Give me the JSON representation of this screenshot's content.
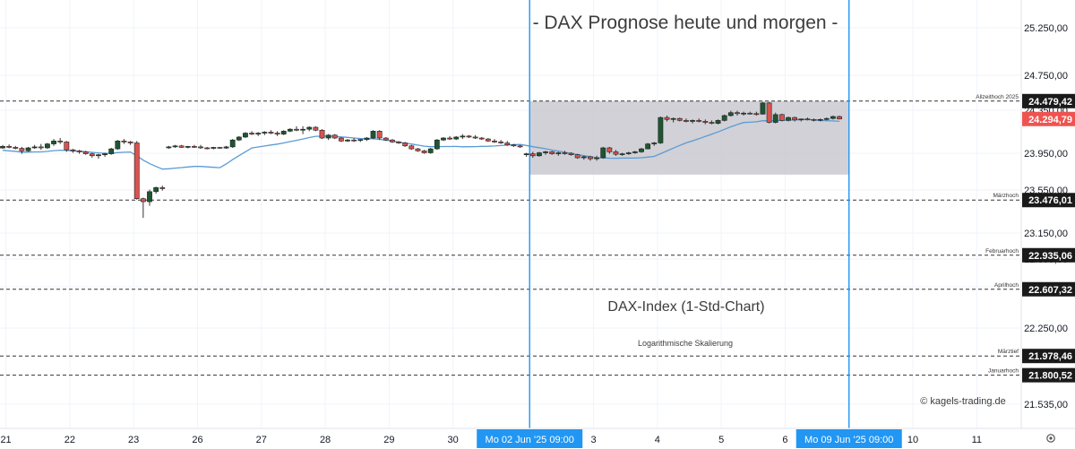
{
  "chart_data": {
    "type": "candlestick",
    "title": "- DAX Prognose heute und morgen -",
    "subtitle": "DAX-Index (1-Std-Chart)",
    "scale_note": "Logarithmische Skalierung",
    "watermark": "© kagels-trading.de",
    "y_axis_ticks": [
      "25.250,00",
      "24.750,00",
      "24.350,00",
      "23.950,00",
      "23.550,00",
      "23.150,00",
      "22.850,00",
      "22.550,00",
      "22.250,00",
      "21.535,00"
    ],
    "x_axis_ticks": [
      {
        "label": "21",
        "x": 0.5
      },
      {
        "label": "22",
        "x": 10.5
      },
      {
        "label": "23",
        "x": 20.5
      },
      {
        "label": "26",
        "x": 30.5
      },
      {
        "label": "27",
        "x": 40.5
      },
      {
        "label": "28",
        "x": 50.5
      },
      {
        "label": "29",
        "x": 60.5
      },
      {
        "label": "30",
        "x": 70.5
      },
      {
        "label": "3",
        "x": 92.5
      },
      {
        "label": "4",
        "x": 102.5
      },
      {
        "label": "5",
        "x": 112.5
      },
      {
        "label": "6",
        "x": 122.5
      },
      {
        "label": "10",
        "x": 142.5
      },
      {
        "label": "11",
        "x": 152.5
      }
    ],
    "date_markers": [
      {
        "label": "Mo 02 Jun '25   09:00",
        "x": 82.5
      },
      {
        "label": "Mo 09 Jun '25   09:00",
        "x": 132.5
      }
    ],
    "price_levels": [
      {
        "name": "Allzeithoch 2025",
        "value": 24479.42,
        "label": "24.479,42"
      },
      {
        "name": "Märzhoch",
        "value": 23476.01,
        "label": "23.476,01"
      },
      {
        "name": "Februarhoch",
        "value": 22935.06,
        "label": "22.935,06"
      },
      {
        "name": "Aprilhoch",
        "value": 22607.32,
        "label": "22.607,32"
      },
      {
        "name": "Märztief",
        "value": 21978.46,
        "label": "21.978,46"
      },
      {
        "name": "Januarhoch",
        "value": 21800.52,
        "label": "21.800,52"
      }
    ],
    "current_price": {
      "value": 24294.79,
      "label": "24.294,79"
    },
    "forecast_zone": {
      "from_x": 82.5,
      "to_x": 132.5,
      "upper": 24479,
      "lower": 23730
    },
    "colors": {
      "bull": "#1e5631",
      "bear": "#d9534f",
      "ma": "#5b9bd5",
      "marker": "#2196f3",
      "zone": "#c9c9d0"
    },
    "candles": [
      [
        23999,
        24030,
        23990,
        24015
      ],
      [
        24015,
        24035,
        23995,
        24005
      ],
      [
        24005,
        24020,
        23985,
        23995
      ],
      [
        23995,
        24010,
        23940,
        23970
      ],
      [
        23970,
        24010,
        23960,
        24000
      ],
      [
        24000,
        24030,
        23990,
        24010
      ],
      [
        24010,
        24040,
        23980,
        24000
      ],
      [
        24000,
        24050,
        23990,
        24040
      ],
      [
        24040,
        24090,
        24020,
        24070
      ],
      [
        24070,
        24100,
        24040,
        24060
      ],
      [
        24060,
        24070,
        23960,
        23980
      ],
      [
        23980,
        23990,
        23950,
        23970
      ],
      [
        23970,
        23980,
        23940,
        23960
      ],
      [
        23960,
        23970,
        23930,
        23940
      ],
      [
        23940,
        23950,
        23900,
        23920
      ],
      [
        23920,
        23940,
        23890,
        23930
      ],
      [
        23930,
        23950,
        23910,
        23940
      ],
      [
        23940,
        24000,
        23930,
        23990
      ],
      [
        23990,
        24080,
        23980,
        24070
      ],
      [
        24070,
        24090,
        24040,
        24060
      ],
      [
        24060,
        24070,
        24030,
        24050
      ],
      [
        24050,
        24070,
        23480,
        23490
      ],
      [
        23490,
        23500,
        23300,
        23460
      ],
      [
        23460,
        23580,
        23420,
        23560
      ],
      [
        23560,
        23610,
        23540,
        23600
      ],
      [
        23600,
        23620,
        23570,
        23590
      ],
      [
        24000,
        24020,
        23990,
        24010
      ],
      [
        24010,
        24030,
        24000,
        24020
      ],
      [
        24020,
        24030,
        24000,
        24005
      ],
      [
        24005,
        24020,
        23995,
        24015
      ],
      [
        24015,
        24030,
        24000,
        24010
      ],
      [
        24010,
        24030,
        23990,
        24000
      ],
      [
        24000,
        24010,
        23985,
        23995
      ],
      [
        23995,
        24010,
        23985,
        24005
      ],
      [
        24005,
        24010,
        23990,
        23998
      ],
      [
        23998,
        24020,
        23990,
        24010
      ],
      [
        24010,
        24090,
        24000,
        24080
      ],
      [
        24080,
        24120,
        24070,
        24110
      ],
      [
        24110,
        24160,
        24100,
        24150
      ],
      [
        24150,
        24170,
        24130,
        24140
      ],
      [
        24140,
        24160,
        24120,
        24150
      ],
      [
        24150,
        24170,
        24130,
        24160
      ],
      [
        24160,
        24180,
        24140,
        24150
      ],
      [
        24150,
        24170,
        24120,
        24140
      ],
      [
        24140,
        24180,
        24130,
        24170
      ],
      [
        24170,
        24200,
        24160,
        24190
      ],
      [
        24190,
        24220,
        24170,
        24180
      ],
      [
        24180,
        24220,
        24140,
        24190
      ],
      [
        24190,
        24220,
        24170,
        24210
      ],
      [
        24210,
        24220,
        24170,
        24180
      ],
      [
        24180,
        24190,
        24090,
        24100
      ],
      [
        24100,
        24140,
        24080,
        24130
      ],
      [
        24130,
        24140,
        24090,
        24100
      ],
      [
        24100,
        24110,
        24060,
        24070
      ],
      [
        24070,
        24090,
        24060,
        24080
      ],
      [
        24080,
        24100,
        24060,
        24075
      ],
      [
        24075,
        24090,
        24060,
        24085
      ],
      [
        24085,
        24110,
        24070,
        24100
      ],
      [
        24100,
        24180,
        24090,
        24170
      ],
      [
        24170,
        24180,
        24080,
        24100
      ],
      [
        24100,
        24110,
        24070,
        24080
      ],
      [
        24080,
        24090,
        24050,
        24060
      ],
      [
        24060,
        24070,
        24040,
        24050
      ],
      [
        24050,
        24060,
        24010,
        24020
      ],
      [
        24020,
        24030,
        23980,
        23990
      ],
      [
        23990,
        24000,
        23960,
        23970
      ],
      [
        23970,
        23980,
        23940,
        23950
      ],
      [
        23950,
        24000,
        23940,
        23990
      ],
      [
        23990,
        24090,
        23980,
        24080
      ],
      [
        24080,
        24110,
        24070,
        24100
      ],
      [
        24100,
        24120,
        24080,
        24090
      ],
      [
        24090,
        24120,
        24080,
        24110
      ],
      [
        24110,
        24140,
        24090,
        24120
      ],
      [
        24120,
        24130,
        24100,
        24110
      ],
      [
        24110,
        24130,
        24090,
        24100
      ],
      [
        24100,
        24110,
        24080,
        24090
      ],
      [
        24090,
        24100,
        24060,
        24070
      ],
      [
        24070,
        24090,
        24050,
        24060
      ],
      [
        24060,
        24080,
        24040,
        24050
      ],
      [
        24050,
        24070,
        24020,
        24030
      ],
      [
        24030,
        24040,
        24010,
        24020
      ],
      [
        24020,
        24030,
        24000,
        24010
      ],
      [
        23930,
        23950,
        23910,
        23940
      ],
      [
        23940,
        23960,
        23900,
        23920
      ],
      [
        23920,
        23960,
        23910,
        23950
      ],
      [
        23950,
        23970,
        23930,
        23960
      ],
      [
        23960,
        23970,
        23930,
        23940
      ],
      [
        23940,
        23960,
        23920,
        23950
      ],
      [
        23950,
        23970,
        23930,
        23945
      ],
      [
        23945,
        23955,
        23920,
        23930
      ],
      [
        23930,
        23940,
        23890,
        23900
      ],
      [
        23900,
        23920,
        23880,
        23910
      ],
      [
        23910,
        23920,
        23870,
        23890
      ],
      [
        23890,
        23920,
        23870,
        23900
      ],
      [
        23900,
        24010,
        23890,
        24000
      ],
      [
        24000,
        24010,
        23940,
        23960
      ],
      [
        23960,
        23980,
        23920,
        23935
      ],
      [
        23935,
        23950,
        23920,
        23940
      ],
      [
        23940,
        23960,
        23930,
        23950
      ],
      [
        23950,
        23970,
        23940,
        23960
      ],
      [
        23960,
        24000,
        23950,
        23990
      ],
      [
        23990,
        24050,
        23985,
        24040
      ],
      [
        24040,
        24060,
        24020,
        24050
      ],
      [
        24050,
        24320,
        24040,
        24310
      ],
      [
        24310,
        24330,
        24270,
        24290
      ],
      [
        24290,
        24310,
        24260,
        24300
      ],
      [
        24300,
        24310,
        24270,
        24280
      ],
      [
        24280,
        24300,
        24260,
        24270
      ],
      [
        24270,
        24290,
        24250,
        24280
      ],
      [
        24280,
        24300,
        24260,
        24270
      ],
      [
        24270,
        24290,
        24240,
        24260
      ],
      [
        24260,
        24280,
        24240,
        24250
      ],
      [
        24250,
        24290,
        24240,
        24280
      ],
      [
        24280,
        24340,
        24270,
        24330
      ],
      [
        24330,
        24380,
        24320,
        24360
      ],
      [
        24360,
        24380,
        24330,
        24350
      ],
      [
        24350,
        24370,
        24330,
        24355
      ],
      [
        24355,
        24370,
        24340,
        24350
      ],
      [
        24350,
        24370,
        24330,
        24345
      ],
      [
        24345,
        24470,
        24340,
        24460
      ],
      [
        24460,
        24470,
        24250,
        24260
      ],
      [
        24260,
        24360,
        24250,
        24340
      ],
      [
        24340,
        24350,
        24270,
        24280
      ],
      [
        24280,
        24320,
        24270,
        24310
      ],
      [
        24310,
        24320,
        24270,
        24285
      ],
      [
        24285,
        24300,
        24270,
        24295
      ],
      [
        24295,
        24310,
        24280,
        24290
      ],
      [
        24290,
        24300,
        24270,
        24285
      ],
      [
        24285,
        24300,
        24270,
        24290
      ],
      [
        24290,
        24310,
        24280,
        24300
      ],
      [
        24300,
        24330,
        24290,
        24320
      ],
      [
        24320,
        24330,
        24290,
        24295
      ]
    ]
  },
  "ui": {
    "settings_icon": "gear-icon"
  }
}
